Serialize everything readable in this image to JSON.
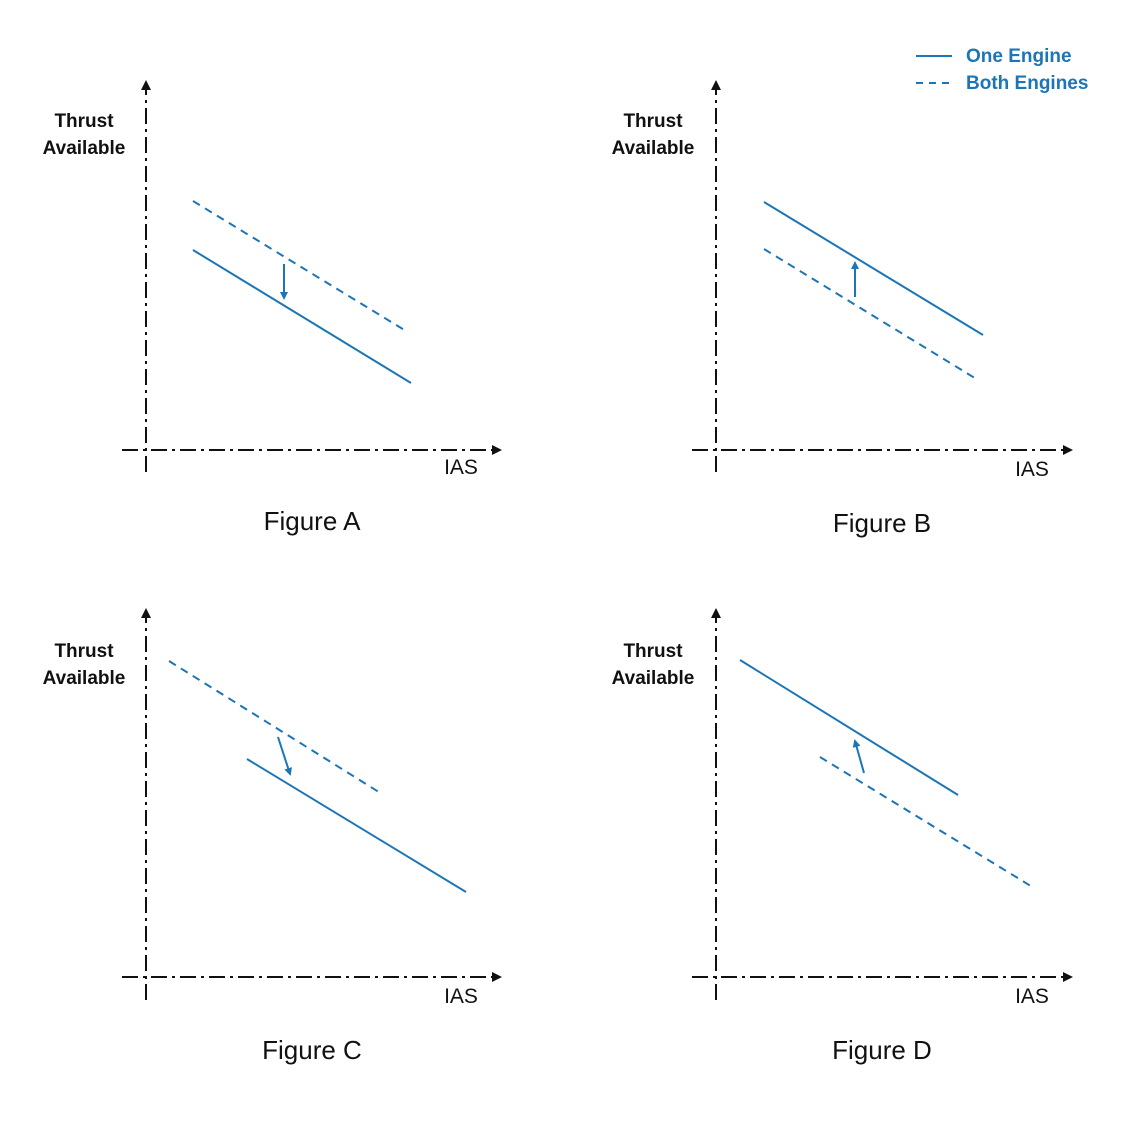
{
  "legend": [
    {
      "label": "One Engine",
      "style": "solid"
    },
    {
      "label": "Both Engines",
      "style": "dashed"
    }
  ],
  "colors": {
    "curve": "#1c75b5",
    "axis": "#111111",
    "legend_text": "#1c75b5"
  },
  "figures": [
    {
      "caption": "Figure A",
      "y_axis_label_line1": "Thrust",
      "y_axis_label_line2": "Available",
      "x_axis_label": "IAS",
      "arrow_direction": "down"
    },
    {
      "caption": "Figure B",
      "y_axis_label_line1": "Thrust",
      "y_axis_label_line2": "Available",
      "x_axis_label": "IAS",
      "arrow_direction": "up"
    },
    {
      "caption": "Figure C",
      "y_axis_label_line1": "Thrust",
      "y_axis_label_line2": "Available",
      "x_axis_label": "IAS",
      "arrow_direction": "down"
    },
    {
      "caption": "Figure D",
      "y_axis_label_line1": "Thrust",
      "y_axis_label_line2": "Available",
      "x_axis_label": "IAS",
      "arrow_direction": "up"
    }
  ]
}
